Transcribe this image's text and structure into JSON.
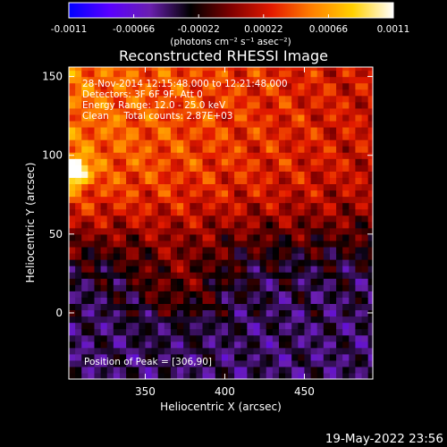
{
  "chart_data": {
    "type": "heatmap",
    "title": "Reconstructed RHESSI Image",
    "xlabel": "Heliocentric X (arcsec)",
    "ylabel": "Heliocentric Y (arcsec)",
    "xlim": [
      302,
      493
    ],
    "ylim": [
      -42,
      156
    ],
    "x_ticks": [
      350,
      400,
      450
    ],
    "y_ticks": [
      0,
      50,
      100,
      150
    ],
    "x_tick_labels": [
      "350",
      "400",
      "450"
    ],
    "y_tick_labels": [
      "0",
      "50",
      "100",
      "150"
    ],
    "colorbar": {
      "range": [
        -0.0011,
        0.0011
      ],
      "ticks": [
        -0.0011,
        -0.00066,
        -0.00022,
        0.00022,
        0.00066,
        0.0011
      ],
      "tick_labels": [
        "-0.0011",
        "-0.00066",
        "-0.00022",
        "0.00022",
        "0.00066",
        "0.0011"
      ],
      "units_label": "(photons cm⁻² s⁻¹ asec⁻²)"
    },
    "annotations": [
      "28-Nov-2014 12:15:48.000 to 12:21:48.000",
      "Detectors: 3F 6F 9F, Att 0",
      "Energy Range: 12.0 - 25.0 keV",
      "Clean     Total counts: 2.87E+03"
    ],
    "peak_label": "Position of Peak = [306,90]",
    "peak_position": [
      306,
      90
    ],
    "footer_timestamp": "19-May-2022 23:56",
    "colormap": [
      "#0000ff",
      "#5a00ff",
      "#6a1fb0",
      "#000000",
      "#800000",
      "#e31a00",
      "#ff8000",
      "#ffd000",
      "#ffffff"
    ]
  }
}
